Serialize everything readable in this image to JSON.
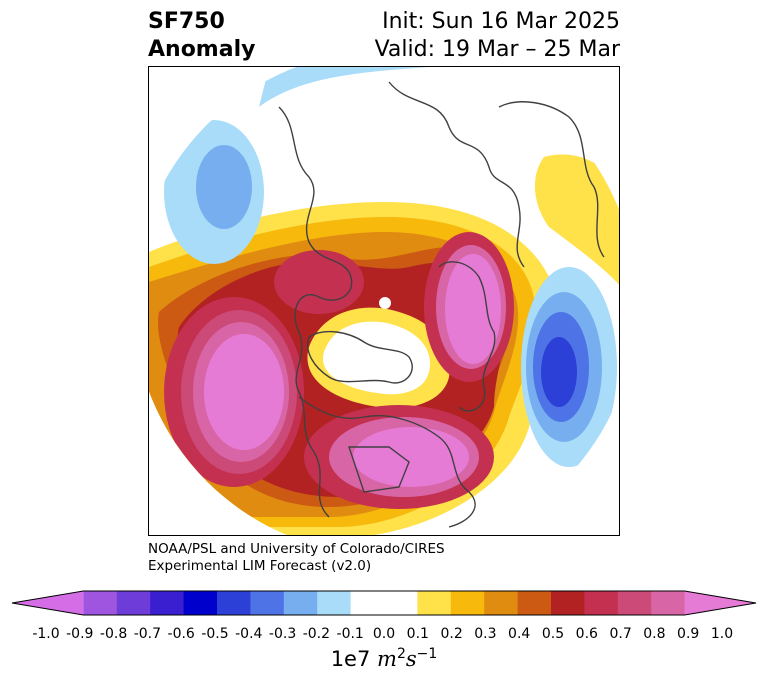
{
  "title": {
    "left_line1": "SF750",
    "left_line2": "Anomaly",
    "right_line1": "Init: Sun 16 Mar 2025",
    "right_line2": "Valid: 19 Mar – 25 Mar"
  },
  "credit": {
    "line1": "NOAA/PSL and University of Colorado/CIRES",
    "line2": "Experimental LIM Forecast (v2.0)"
  },
  "colorbar": {
    "colors": [
      "#d56ee6",
      "#9f55e0",
      "#6e3cd8",
      "#3a1fd0",
      "#0000cc",
      "#2c3fd6",
      "#4e73e6",
      "#76aef0",
      "#a8dcf8",
      "#ffffff",
      "#ffffff",
      "#ffe14a",
      "#f6b90c",
      "#e08c10",
      "#cc5a12",
      "#b22222",
      "#c43050",
      "#cc4a78",
      "#d866a6",
      "#e67bd6"
    ],
    "tick_labels": [
      "-1.0",
      "-0.9",
      "-0.8",
      "-0.7",
      "-0.6",
      "-0.5",
      "-0.4",
      "-0.3",
      "-0.2",
      "-0.1",
      "0.0",
      "0.1",
      "0.2",
      "0.3",
      "0.4",
      "0.5",
      "0.6",
      "0.7",
      "0.8",
      "0.9",
      "1.0"
    ],
    "units_prefix": "1e7",
    "units_m": "m",
    "units_m_exp": "2",
    "units_s": "s",
    "units_s_exp": "−1"
  }
}
